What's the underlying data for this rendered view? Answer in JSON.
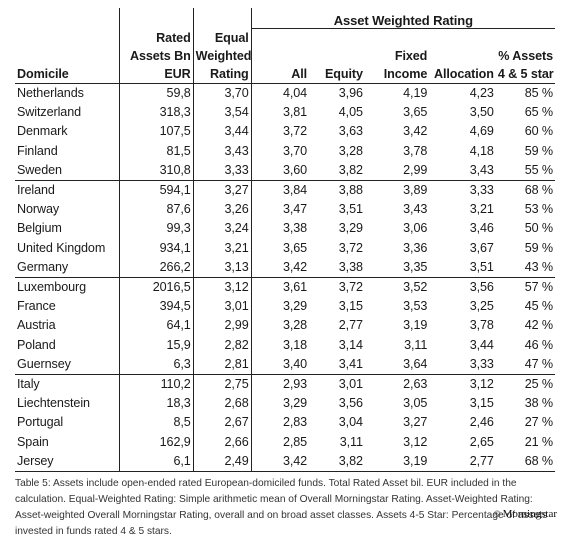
{
  "header": {
    "group_label": "Asset Weighted Rating",
    "col_domicile": "Domicile",
    "col_rated_1": "Rated",
    "col_rated_2": "Assets Bn",
    "col_rated_3": "EUR",
    "col_equal_1": "Equal",
    "col_equal_2": "Weighted",
    "col_equal_3": "Rating",
    "col_all": "All",
    "col_equity": "Equity",
    "col_fixed_1": "Fixed",
    "col_fixed_2": "Income",
    "col_allocation": "Allocation",
    "col_pct_1": "% Assets",
    "col_pct_2": "4 & 5 star"
  },
  "rows": [
    [
      "Netherlands",
      "59,8",
      "3,70",
      "4,04",
      "3,96",
      "4,19",
      "4,23",
      "85 %"
    ],
    [
      "Switzerland",
      "318,3",
      "3,54",
      "3,81",
      "4,05",
      "3,65",
      "3,50",
      "65 %"
    ],
    [
      "Denmark",
      "107,5",
      "3,44",
      "3,72",
      "3,63",
      "3,42",
      "4,69",
      "60 %"
    ],
    [
      "Finland",
      "81,5",
      "3,43",
      "3,70",
      "3,28",
      "3,78",
      "4,18",
      "59 %"
    ],
    [
      "Sweden",
      "310,8",
      "3,33",
      "3,60",
      "3,82",
      "2,99",
      "3,43",
      "55 %"
    ],
    [
      "Ireland",
      "594,1",
      "3,27",
      "3,84",
      "3,88",
      "3,89",
      "3,33",
      "68 %"
    ],
    [
      "Norway",
      "87,6",
      "3,26",
      "3,47",
      "3,51",
      "3,43",
      "3,21",
      "53 %"
    ],
    [
      "Belgium",
      "99,3",
      "3,24",
      "3,38",
      "3,29",
      "3,06",
      "3,46",
      "50 %"
    ],
    [
      "United Kingdom",
      "934,1",
      "3,21",
      "3,65",
      "3,72",
      "3,36",
      "3,67",
      "59 %"
    ],
    [
      "Germany",
      "266,2",
      "3,13",
      "3,42",
      "3,38",
      "3,35",
      "3,51",
      "43 %"
    ],
    [
      "Luxembourg",
      "2016,5",
      "3,12",
      "3,61",
      "3,72",
      "3,52",
      "3,56",
      "57 %"
    ],
    [
      "France",
      "394,5",
      "3,01",
      "3,29",
      "3,15",
      "3,53",
      "3,25",
      "45 %"
    ],
    [
      "Austria",
      "64,1",
      "2,99",
      "3,28",
      "2,77",
      "3,19",
      "3,78",
      "42 %"
    ],
    [
      "Poland",
      "15,9",
      "2,82",
      "3,18",
      "3,14",
      "3,11",
      "3,44",
      "46 %"
    ],
    [
      "Guernsey",
      "6,3",
      "2,81",
      "3,40",
      "3,41",
      "3,64",
      "3,33",
      "47 %"
    ],
    [
      "Italy",
      "110,2",
      "2,75",
      "2,93",
      "3,01",
      "2,63",
      "3,12",
      "25 %"
    ],
    [
      "Liechtenstein",
      "18,3",
      "2,68",
      "3,29",
      "3,56",
      "3,05",
      "3,15",
      "38 %"
    ],
    [
      "Portugal",
      "8,5",
      "2,67",
      "2,83",
      "3,04",
      "3,27",
      "2,46",
      "27 %"
    ],
    [
      "Spain",
      "162,9",
      "2,66",
      "2,85",
      "3,11",
      "3,12",
      "2,65",
      "21 %"
    ],
    [
      "Jersey",
      "6,1",
      "2,49",
      "3,42",
      "3,82",
      "3,19",
      "2,77",
      "68 %"
    ]
  ],
  "footnote": "Table 5: Assets include open-ended rated European-domiciled funds. Total Rated Asset bil. EUR included in the calculation. Equal-Weighted Rating: Simple arithmetic mean of Overall Morningstar Rating. Asset-Weighted Rating: Asset-weighted Overall Morningstar Rating, overall and on broad asset classes. Assets 4-5 Star: Percentage of assets invested in funds rated 4 & 5 stars.",
  "brand": "Morningstar",
  "brand_mark": "©"
}
